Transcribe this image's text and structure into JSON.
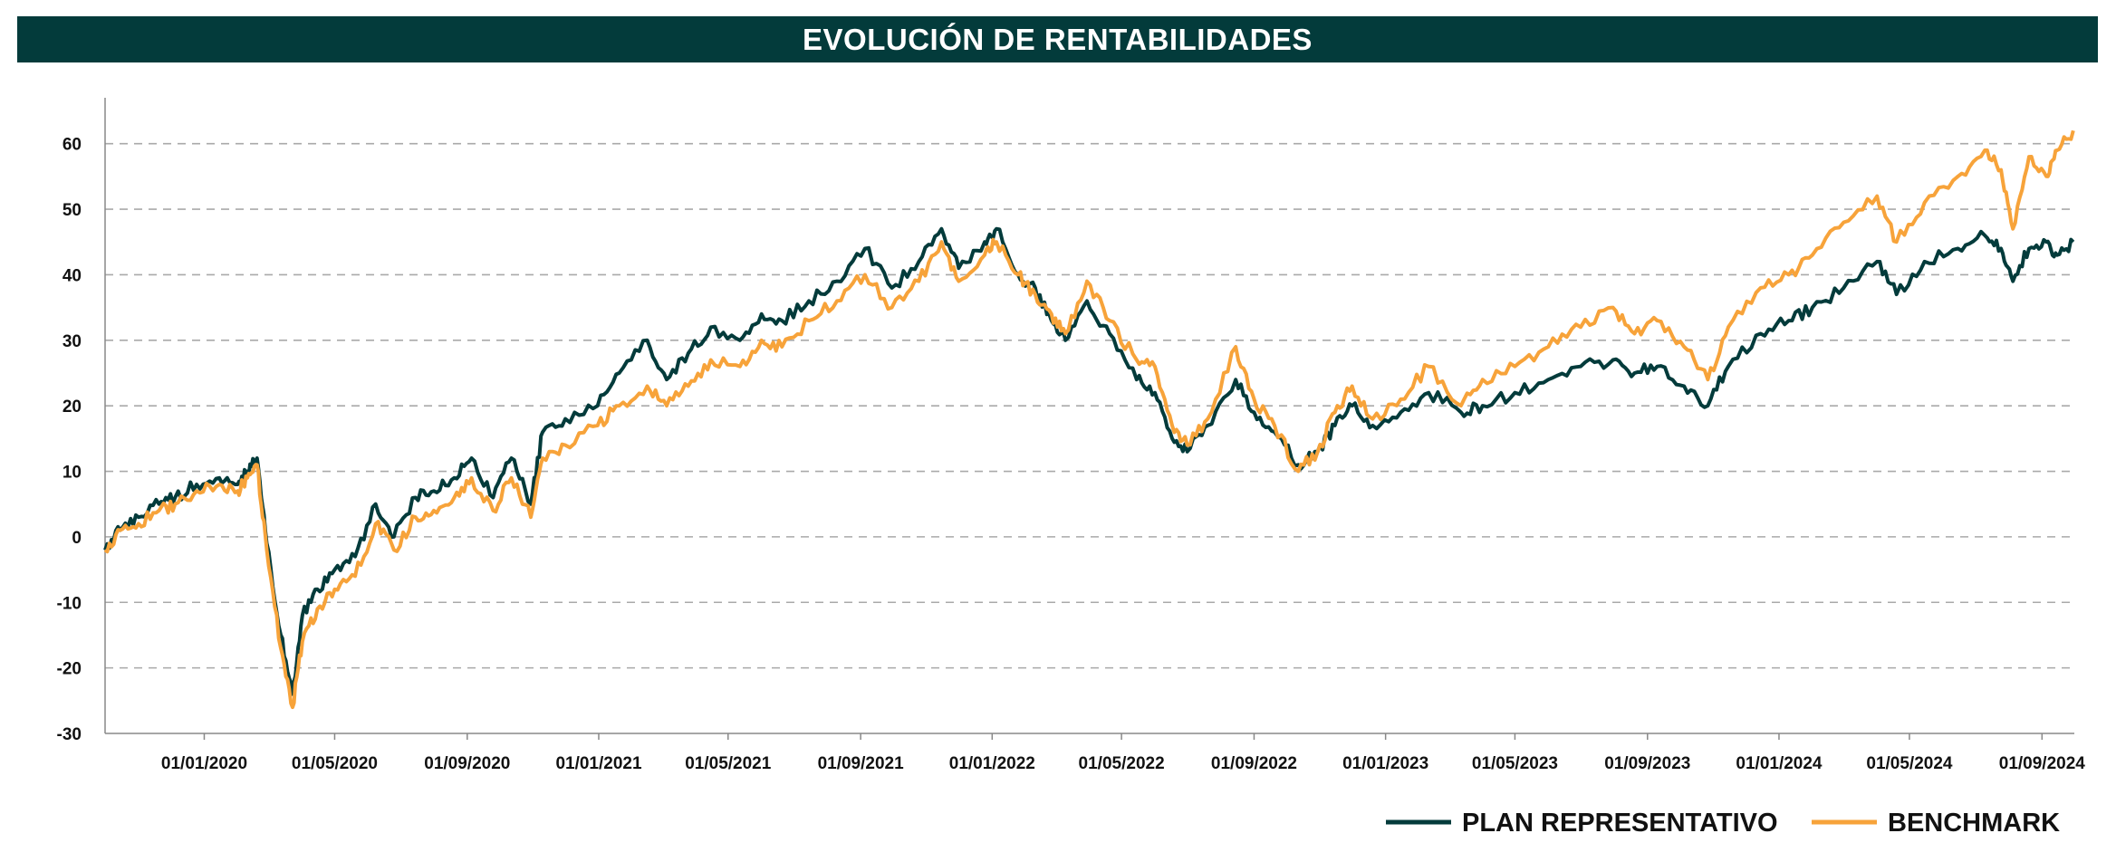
{
  "title": "EVOLUCIÓN DE RENTABILIDADES",
  "chart_data": {
    "type": "line",
    "title": "EVOLUCIÓN DE RENTABILIDADES",
    "xlabel": "",
    "ylabel": "",
    "x_range": [
      "2019-10-01",
      "2024-10-01"
    ],
    "ylim": [
      -30,
      67
    ],
    "y_ticks": [
      60,
      50,
      40,
      30,
      20,
      10,
      0,
      -10,
      -20,
      -30
    ],
    "x_ticks": [
      "01/01/2020",
      "01/05/2020",
      "01/09/2020",
      "01/01/2021",
      "01/05/2021",
      "01/09/2021",
      "01/01/2022",
      "01/05/2022",
      "01/09/2022",
      "01/01/2023",
      "01/05/2023",
      "01/09/2023",
      "01/01/2024",
      "01/05/2024",
      "01/09/2024"
    ],
    "x_tick_dates": [
      "2020-01-01",
      "2020-05-01",
      "2020-09-01",
      "2021-01-01",
      "2021-05-01",
      "2021-09-01",
      "2022-01-01",
      "2022-05-01",
      "2022-09-01",
      "2023-01-01",
      "2023-05-01",
      "2023-09-01",
      "2024-01-01",
      "2024-05-01",
      "2024-09-01"
    ],
    "grid": "horizontal dashed",
    "legend_position": "bottom-right",
    "series": [
      {
        "name": "PLAN REPRESENTATIVO",
        "color": "#033b3b",
        "points": [
          [
            "2019-10-01",
            -2
          ],
          [
            "2019-10-15",
            1
          ],
          [
            "2019-11-01",
            3
          ],
          [
            "2019-11-20",
            5
          ],
          [
            "2019-12-05",
            6
          ],
          [
            "2019-12-25",
            8
          ],
          [
            "2020-01-15",
            9
          ],
          [
            "2020-02-01",
            8
          ],
          [
            "2020-02-10",
            10
          ],
          [
            "2020-02-19",
            12
          ],
          [
            "2020-02-28",
            -1
          ],
          [
            "2020-03-12",
            -15
          ],
          [
            "2020-03-23",
            -24
          ],
          [
            "2020-04-01",
            -12
          ],
          [
            "2020-04-15",
            -8
          ],
          [
            "2020-05-01",
            -5
          ],
          [
            "2020-05-20",
            -3
          ],
          [
            "2020-06-08",
            5
          ],
          [
            "2020-06-25",
            0
          ],
          [
            "2020-07-15",
            6
          ],
          [
            "2020-08-01",
            7
          ],
          [
            "2020-08-20",
            9
          ],
          [
            "2020-09-05",
            12
          ],
          [
            "2020-09-25",
            6
          ],
          [
            "2020-10-12",
            12
          ],
          [
            "2020-10-30",
            5
          ],
          [
            "2020-11-10",
            16
          ],
          [
            "2020-12-01",
            18
          ],
          [
            "2020-12-31",
            20
          ],
          [
            "2021-01-20",
            25
          ],
          [
            "2021-02-15",
            30
          ],
          [
            "2021-03-05",
            24
          ],
          [
            "2021-03-25",
            28
          ],
          [
            "2021-04-15",
            32
          ],
          [
            "2021-05-12",
            30
          ],
          [
            "2021-06-01",
            34
          ],
          [
            "2021-06-20",
            33
          ],
          [
            "2021-07-15",
            36
          ],
          [
            "2021-08-10",
            39
          ],
          [
            "2021-09-05",
            44
          ],
          [
            "2021-09-30",
            38
          ],
          [
            "2021-10-25",
            42
          ],
          [
            "2021-11-15",
            47
          ],
          [
            "2021-12-01",
            41
          ],
          [
            "2021-12-25",
            45
          ],
          [
            "2022-01-05",
            47
          ],
          [
            "2022-01-25",
            40
          ],
          [
            "2022-02-10",
            38
          ],
          [
            "2022-02-25",
            33
          ],
          [
            "2022-03-10",
            30
          ],
          [
            "2022-03-30",
            36
          ],
          [
            "2022-04-20",
            31
          ],
          [
            "2022-05-15",
            24
          ],
          [
            "2022-06-01",
            22
          ],
          [
            "2022-06-17",
            15
          ],
          [
            "2022-07-01",
            13
          ],
          [
            "2022-07-20",
            17
          ],
          [
            "2022-08-15",
            24
          ],
          [
            "2022-09-01",
            19
          ],
          [
            "2022-09-20",
            16
          ],
          [
            "2022-10-12",
            11
          ],
          [
            "2022-10-30",
            13
          ],
          [
            "2022-11-15",
            17
          ],
          [
            "2022-12-01",
            20
          ],
          [
            "2022-12-20",
            17
          ],
          [
            "2023-01-15",
            19
          ],
          [
            "2023-02-10",
            22
          ],
          [
            "2023-03-12",
            19
          ],
          [
            "2023-04-01",
            20
          ],
          [
            "2023-05-01",
            22
          ],
          [
            "2023-06-01",
            24
          ],
          [
            "2023-07-01",
            26
          ],
          [
            "2023-07-31",
            27
          ],
          [
            "2023-08-20",
            25
          ],
          [
            "2023-09-10",
            26
          ],
          [
            "2023-10-05",
            23
          ],
          [
            "2023-10-27",
            20
          ],
          [
            "2023-11-15",
            26
          ],
          [
            "2023-12-15",
            31
          ],
          [
            "2024-01-10",
            33
          ],
          [
            "2024-02-01",
            35
          ],
          [
            "2024-03-01",
            38
          ],
          [
            "2024-04-01",
            42
          ],
          [
            "2024-04-19",
            37
          ],
          [
            "2024-05-15",
            42
          ],
          [
            "2024-06-15",
            44
          ],
          [
            "2024-07-10",
            46
          ],
          [
            "2024-07-25",
            44
          ],
          [
            "2024-08-05",
            39
          ],
          [
            "2024-08-20",
            44
          ],
          [
            "2024-09-05",
            45
          ],
          [
            "2024-09-15",
            43
          ],
          [
            "2024-09-30",
            45
          ]
        ]
      },
      {
        "name": "BENCHMARK",
        "color": "#f7a33a",
        "points": [
          [
            "2019-10-01",
            -2
          ],
          [
            "2019-10-15",
            1
          ],
          [
            "2019-11-01",
            2
          ],
          [
            "2019-11-20",
            4
          ],
          [
            "2019-12-05",
            5
          ],
          [
            "2019-12-25",
            7
          ],
          [
            "2020-01-15",
            8
          ],
          [
            "2020-02-01",
            7
          ],
          [
            "2020-02-10",
            9
          ],
          [
            "2020-02-19",
            11
          ],
          [
            "2020-02-28",
            -2
          ],
          [
            "2020-03-12",
            -17
          ],
          [
            "2020-03-23",
            -26
          ],
          [
            "2020-04-01",
            -16
          ],
          [
            "2020-04-15",
            -11
          ],
          [
            "2020-05-01",
            -8
          ],
          [
            "2020-05-20",
            -6
          ],
          [
            "2020-06-08",
            2
          ],
          [
            "2020-06-25",
            -2
          ],
          [
            "2020-07-15",
            3
          ],
          [
            "2020-08-01",
            4
          ],
          [
            "2020-08-20",
            6
          ],
          [
            "2020-09-05",
            9
          ],
          [
            "2020-09-25",
            4
          ],
          [
            "2020-10-12",
            9
          ],
          [
            "2020-10-30",
            3
          ],
          [
            "2020-11-10",
            12
          ],
          [
            "2020-12-01",
            14
          ],
          [
            "2020-12-31",
            17
          ],
          [
            "2021-01-20",
            20
          ],
          [
            "2021-02-15",
            23
          ],
          [
            "2021-03-05",
            20
          ],
          [
            "2021-03-25",
            23
          ],
          [
            "2021-04-15",
            27
          ],
          [
            "2021-05-12",
            26
          ],
          [
            "2021-06-01",
            30
          ],
          [
            "2021-06-20",
            29
          ],
          [
            "2021-07-15",
            33
          ],
          [
            "2021-08-10",
            36
          ],
          [
            "2021-09-05",
            40
          ],
          [
            "2021-09-30",
            35
          ],
          [
            "2021-10-25",
            39
          ],
          [
            "2021-11-15",
            45
          ],
          [
            "2021-12-01",
            39
          ],
          [
            "2021-12-25",
            43
          ],
          [
            "2022-01-05",
            45
          ],
          [
            "2022-01-25",
            40
          ],
          [
            "2022-02-10",
            37
          ],
          [
            "2022-02-25",
            34
          ],
          [
            "2022-03-10",
            31
          ],
          [
            "2022-03-30",
            39
          ],
          [
            "2022-04-20",
            33
          ],
          [
            "2022-05-15",
            27
          ],
          [
            "2022-06-01",
            26
          ],
          [
            "2022-06-17",
            17
          ],
          [
            "2022-07-01",
            14
          ],
          [
            "2022-07-20",
            18
          ],
          [
            "2022-08-15",
            29
          ],
          [
            "2022-09-01",
            21
          ],
          [
            "2022-09-20",
            17
          ],
          [
            "2022-10-12",
            10
          ],
          [
            "2022-10-30",
            13
          ],
          [
            "2022-11-15",
            19
          ],
          [
            "2022-12-01",
            23
          ],
          [
            "2022-12-20",
            18
          ],
          [
            "2023-01-15",
            21
          ],
          [
            "2023-02-10",
            26
          ],
          [
            "2023-03-12",
            20
          ],
          [
            "2023-04-01",
            24
          ],
          [
            "2023-05-01",
            26
          ],
          [
            "2023-06-01",
            29
          ],
          [
            "2023-07-01",
            32
          ],
          [
            "2023-07-31",
            35
          ],
          [
            "2023-08-20",
            31
          ],
          [
            "2023-09-10",
            33
          ],
          [
            "2023-10-05",
            29
          ],
          [
            "2023-10-27",
            24
          ],
          [
            "2023-11-15",
            32
          ],
          [
            "2023-12-15",
            38
          ],
          [
            "2024-01-10",
            40
          ],
          [
            "2024-02-01",
            43
          ],
          [
            "2024-03-01",
            48
          ],
          [
            "2024-04-01",
            52
          ],
          [
            "2024-04-19",
            45
          ],
          [
            "2024-05-15",
            51
          ],
          [
            "2024-06-15",
            55
          ],
          [
            "2024-07-10",
            59
          ],
          [
            "2024-07-25",
            56
          ],
          [
            "2024-08-05",
            47
          ],
          [
            "2024-08-20",
            58
          ],
          [
            "2024-09-05",
            55
          ],
          [
            "2024-09-15",
            59
          ],
          [
            "2024-09-30",
            62
          ]
        ]
      }
    ]
  }
}
